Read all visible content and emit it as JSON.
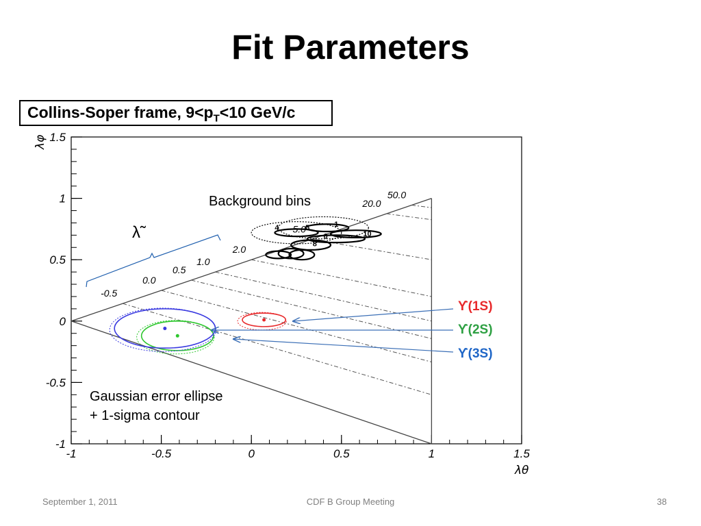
{
  "slide": {
    "title": "Fit Parameters",
    "footer_left": "September 1, 2011",
    "footer_center": "CDF B Group Meeting",
    "footer_right": "38"
  },
  "chart_data": {
    "type": "scatter",
    "frame_label": {
      "main": "Collins-Soper frame, 9<p",
      "sub": "T",
      "tail": "<10 GeV/c"
    },
    "xlabel": "λθ",
    "ylabel": "λφ",
    "xlim": [
      -1,
      1.5
    ],
    "ylim": [
      -1,
      1.5
    ],
    "x_ticks": [
      -1,
      -0.5,
      0,
      0.5,
      1,
      1.5
    ],
    "y_ticks": [
      -1,
      -0.5,
      0,
      0.5,
      1,
      1.5
    ],
    "x_tick_labels": [
      "-1",
      "-0.5",
      "0",
      "0.5",
      "1",
      "1.5"
    ],
    "y_tick_labels": [
      "-1",
      "-0.5",
      "0",
      "0.5",
      "1",
      "1.5"
    ],
    "boundary_triangle": [
      [
        -1,
        0
      ],
      [
        1,
        1
      ],
      [
        1,
        -1
      ]
    ],
    "lambda_tilde_lines": [
      -0.5,
      0.0,
      0.5,
      1.0,
      2.0,
      5.0,
      20.0,
      50.0
    ],
    "lambda_tilde_labels": [
      "-0.5",
      "0.0",
      "0.5",
      "1.0",
      "2.0",
      "5.0",
      "20.0",
      "50.0"
    ],
    "lambda_tilde_symbol": "λ̃",
    "annotations": {
      "background_bins": "Background bins",
      "ellipse_note_line1": "Gaussian error ellipse",
      "ellipse_note_line2": "+ 1-sigma contour"
    },
    "series": [
      {
        "name": "ϒ(1S)",
        "color": "#e8292b",
        "x": 0.07,
        "y": 0.01,
        "rx": 0.12,
        "ry": 0.055
      },
      {
        "name": "ϒ(2S)",
        "color": "#2ec72e",
        "x": -0.41,
        "y": -0.12,
        "rx": 0.2,
        "ry": 0.12
      },
      {
        "name": "ϒ(3S)",
        "color": "#3a3ae0",
        "x": -0.48,
        "y": -0.06,
        "rx": 0.28,
        "ry": 0.16
      }
    ],
    "background_bin_labels": [
      "4",
      "5",
      "6",
      "8",
      "10",
      "1"
    ],
    "background_ellipses": [
      {
        "x": 0.25,
        "y": 0.72,
        "rx": 0.25,
        "ry": 0.09,
        "dashed": true
      },
      {
        "x": 0.4,
        "y": 0.76,
        "rx": 0.25,
        "ry": 0.09,
        "dashed": true
      },
      {
        "x": 0.25,
        "y": 0.72,
        "rx": 0.12,
        "ry": 0.03,
        "dashed": false
      },
      {
        "x": 0.42,
        "y": 0.76,
        "rx": 0.12,
        "ry": 0.03,
        "dashed": false
      },
      {
        "x": 0.47,
        "y": 0.67,
        "rx": 0.16,
        "ry": 0.03,
        "dashed": false
      },
      {
        "x": 0.58,
        "y": 0.71,
        "rx": 0.14,
        "ry": 0.03,
        "dashed": false
      },
      {
        "x": 0.33,
        "y": 0.62,
        "rx": 0.11,
        "ry": 0.04,
        "dashed": false
      },
      {
        "x": 0.15,
        "y": 0.54,
        "rx": 0.07,
        "ry": 0.03,
        "dashed": false
      },
      {
        "x": 0.22,
        "y": 0.55,
        "rx": 0.07,
        "ry": 0.04,
        "dashed": false
      },
      {
        "x": 0.28,
        "y": 0.54,
        "rx": 0.07,
        "ry": 0.04,
        "dashed": false
      }
    ],
    "grid": false
  }
}
